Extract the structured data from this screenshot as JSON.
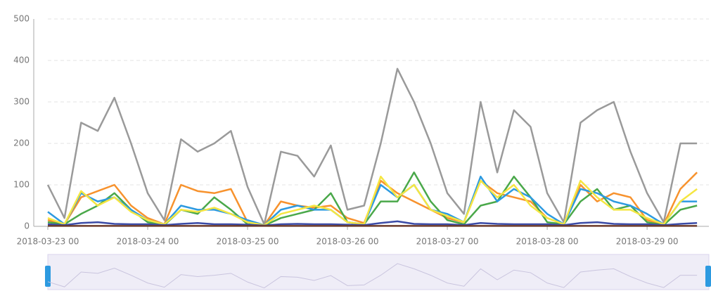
{
  "chart_data": {
    "type": "line",
    "categories": [
      "2018-03-23 00",
      null,
      null,
      null,
      null,
      null,
      "2018-03-24 00",
      null,
      null,
      null,
      null,
      null,
      "2018-03-25 00",
      null,
      null,
      null,
      null,
      null,
      "2018-03-26 00",
      null,
      null,
      null,
      null,
      null,
      "2018-03-27 00",
      null,
      null,
      null,
      null,
      null,
      "2018-03-28 00",
      null,
      null,
      null,
      null,
      null,
      "2018-03-29 00",
      null,
      null,
      null
    ],
    "series": [
      {
        "color": "#9a9a9a",
        "values": [
          100,
          20,
          250,
          230,
          310,
          200,
          80,
          15,
          210,
          180,
          200,
          230,
          95,
          5,
          180,
          170,
          120,
          195,
          40,
          50,
          200,
          380,
          300,
          200,
          80,
          30,
          300,
          130,
          280,
          240,
          80,
          10,
          250,
          280,
          300,
          180,
          80,
          10,
          200,
          200
        ]
      },
      {
        "color": "#f7922d",
        "values": [
          15,
          5,
          70,
          85,
          100,
          50,
          20,
          5,
          100,
          85,
          80,
          90,
          10,
          3,
          60,
          50,
          45,
          50,
          20,
          8,
          110,
          80,
          60,
          40,
          20,
          10,
          110,
          80,
          70,
          60,
          20,
          5,
          100,
          60,
          80,
          70,
          15,
          5,
          90,
          130
        ]
      },
      {
        "color": "#4aa84a",
        "values": [
          10,
          5,
          30,
          50,
          80,
          40,
          10,
          3,
          40,
          30,
          70,
          40,
          5,
          2,
          20,
          30,
          40,
          80,
          10,
          5,
          60,
          60,
          130,
          60,
          15,
          5,
          50,
          60,
          120,
          70,
          10,
          5,
          60,
          90,
          40,
          50,
          10,
          3,
          40,
          50
        ]
      },
      {
        "color": "#2d9ae0",
        "values": [
          35,
          5,
          80,
          60,
          70,
          40,
          15,
          5,
          50,
          40,
          40,
          30,
          15,
          3,
          40,
          50,
          40,
          40,
          10,
          5,
          100,
          70,
          100,
          40,
          30,
          10,
          120,
          60,
          90,
          70,
          30,
          5,
          90,
          80,
          60,
          50,
          30,
          5,
          60,
          60
        ]
      },
      {
        "color": "#f5e642",
        "values": [
          20,
          5,
          85,
          50,
          70,
          35,
          15,
          5,
          40,
          35,
          45,
          30,
          10,
          3,
          30,
          40,
          50,
          40,
          10,
          5,
          120,
          70,
          100,
          40,
          25,
          10,
          110,
          70,
          100,
          50,
          20,
          5,
          110,
          70,
          40,
          40,
          20,
          5,
          60,
          90
        ]
      },
      {
        "color": "#3b4ba6",
        "values": [
          5,
          3,
          8,
          10,
          6,
          5,
          5,
          3,
          6,
          8,
          5,
          5,
          4,
          2,
          5,
          6,
          5,
          5,
          4,
          3,
          8,
          12,
          6,
          5,
          5,
          3,
          8,
          6,
          5,
          5,
          5,
          3,
          8,
          10,
          6,
          5,
          5,
          3,
          6,
          8
        ]
      },
      {
        "color": "#6b3a2a",
        "values": [
          1,
          1,
          1,
          1,
          1,
          1,
          1,
          1,
          1,
          1,
          1,
          1,
          1,
          1,
          1,
          1,
          1,
          1,
          1,
          1,
          1,
          1,
          1,
          1,
          1,
          1,
          1,
          1,
          1,
          1,
          1,
          1,
          1,
          1,
          1,
          1,
          1,
          1,
          1,
          1
        ]
      }
    ],
    "ylim": [
      0,
      500
    ],
    "yticks": [
      0,
      100,
      200,
      300,
      400,
      500
    ],
    "grid": true
  }
}
